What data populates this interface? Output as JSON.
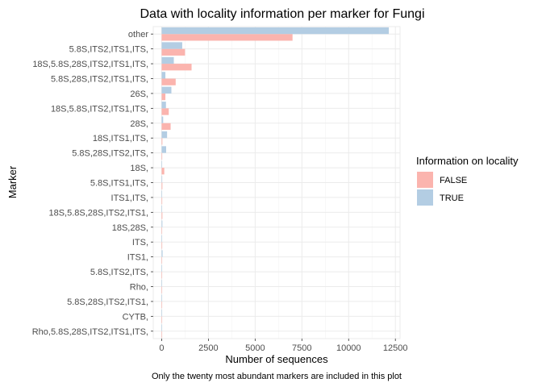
{
  "chart_data": {
    "type": "bar",
    "orientation": "horizontal",
    "title": "Data with locality information per marker for Fungi",
    "xlabel": "Number of sequences",
    "ylabel": "Marker",
    "caption": "Only the twenty most abundant markers are included in this plot",
    "xlim": [
      -450,
      12750
    ],
    "xticks": [
      0,
      2500,
      5000,
      7500,
      10000,
      12500
    ],
    "xtick_labels": [
      "0",
      "2500",
      "5000",
      "7500",
      "10000",
      "12500"
    ],
    "grid": true,
    "legend": {
      "title": "Information on locality",
      "placement": "right",
      "entries": [
        "FALSE",
        "TRUE"
      ]
    },
    "categories": [
      "other",
      "5.8S,ITS2,ITS1,ITS,",
      "18S,5.8S,28S,ITS2,ITS1,ITS,",
      "5.8S,28S,ITS2,ITS1,ITS,",
      "26S,",
      "18S,5.8S,ITS2,ITS1,ITS,",
      "28S,",
      "18S,ITS1,ITS,",
      "5.8S,28S,ITS2,ITS,",
      "18S,",
      "5.8S,ITS1,ITS,",
      "ITS1,ITS,",
      "18S,5.8S,28S,ITS2,ITS1,",
      "18S,28S,",
      "ITS,",
      "ITS1,",
      "5.8S,ITS2,ITS,",
      "Rho,",
      "5.8S,28S,ITS2,ITS1,",
      "CYTB,",
      "Rho,5.8S,28S,ITS2,ITS1,ITS,"
    ],
    "series": [
      {
        "name": "FALSE",
        "color": "#fbb4ae",
        "values": [
          7000,
          1250,
          1600,
          750,
          200,
          380,
          480,
          40,
          30,
          140,
          40,
          30,
          40,
          20,
          30,
          20,
          10,
          5,
          10,
          5,
          5
        ]
      },
      {
        "name": "TRUE",
        "color": "#b3cde3",
        "values": [
          12150,
          1100,
          650,
          200,
          520,
          230,
          80,
          290,
          240,
          20,
          30,
          20,
          20,
          40,
          20,
          50,
          20,
          10,
          10,
          5,
          5
        ]
      }
    ]
  }
}
